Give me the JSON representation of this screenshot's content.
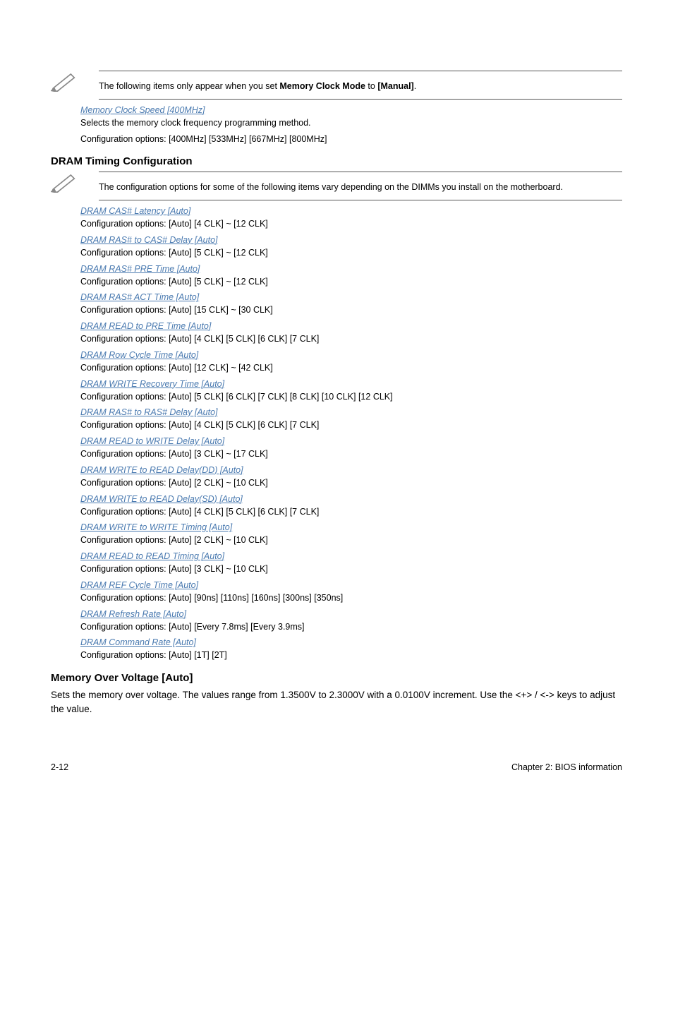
{
  "note1": {
    "text_before": "The following items only appear when you set ",
    "bold_term": "Memory Clock Mode",
    "text_mid": " to ",
    "bold_value": "[Manual]",
    "text_after": "."
  },
  "memory_clock_speed": {
    "title": "Memory Clock Speed [400MHz]",
    "line1": "Selects the memory clock frequency programming method.",
    "line2": "Configuration options: [400MHz] [533MHz] [667MHz] [800MHz]"
  },
  "dram_timing_heading": "DRAM Timing Configuration",
  "note2": {
    "text": "The configuration options for some of the following items vary depending on the DIMMs you install on the motherboard."
  },
  "settings": [
    {
      "title": "DRAM CAS# Latency [Auto]",
      "body": "Configuration options: [Auto] [4 CLK] ~ [12 CLK]"
    },
    {
      "title": "DRAM RAS# to CAS# Delay [Auto]",
      "body": "Configuration options: [Auto] [5 CLK] ~ [12 CLK]"
    },
    {
      "title": "DRAM RAS# PRE Time [Auto]",
      "body": "Configuration options: [Auto] [5 CLK] ~ [12 CLK]"
    },
    {
      "title": "DRAM RAS# ACT Time [Auto]",
      "body": "Configuration options: [Auto] [15 CLK] ~ [30 CLK]"
    },
    {
      "title": "DRAM READ to PRE Time [Auto]",
      "body": "Configuration options: [Auto] [4 CLK] [5 CLK] [6 CLK] [7 CLK]"
    },
    {
      "title": "DRAM Row Cycle Time [Auto]",
      "body": "Configuration options: [Auto] [12 CLK] ~ [42 CLK]"
    },
    {
      "title": "DRAM WRITE Recovery Time [Auto]",
      "body": "Configuration options: [Auto] [5 CLK] [6 CLK] [7 CLK] [8 CLK] [10 CLK] [12 CLK]"
    },
    {
      "title": "DRAM RAS# to RAS# Delay [Auto]",
      "body": "Configuration options: [Auto] [4 CLK] [5 CLK] [6 CLK] [7 CLK]"
    },
    {
      "title": "DRAM READ to WRITE Delay [Auto]",
      "body": "Configuration options: [Auto] [3 CLK] ~ [17 CLK]"
    },
    {
      "title": "DRAM WRITE to READ Delay(DD) [Auto]",
      "body": "Configuration options: [Auto] [2 CLK] ~ [10 CLK]"
    },
    {
      "title": "DRAM WRITE to READ Delay(SD) [Auto]",
      "body": "Configuration options: [Auto] [4 CLK] [5 CLK] [6 CLK] [7 CLK]"
    },
    {
      "title": "DRAM WRITE to WRITE Timing [Auto]",
      "body": "Configuration options: [Auto] [2 CLK] ~ [10 CLK]"
    },
    {
      "title": "DRAM READ to READ Timing [Auto]",
      "body": "Configuration options: [Auto] [3 CLK] ~ [10 CLK]"
    },
    {
      "title": "DRAM REF Cycle Time [Auto]",
      "body": "Configuration options: [Auto] [90ns] [110ns] [160ns] [300ns] [350ns]"
    },
    {
      "title": "DRAM Refresh Rate [Auto]",
      "body": "Configuration options: [Auto] [Every 7.8ms] [Every 3.9ms]"
    },
    {
      "title": "DRAM Command Rate [Auto]",
      "body": "Configuration options: [Auto] [1T] [2T]"
    }
  ],
  "mem_over_voltage": {
    "heading": "Memory Over Voltage [Auto]",
    "body_before": "Sets the memory over voltage. The values range from 1.3500V to 2.3000V with a 0.0100V increment. Use the ",
    "key1": "<+>",
    "slash": " / ",
    "key2": "<->",
    "body_after": " keys to adjust the value."
  },
  "footer": {
    "left": "2-12",
    "right": "Chapter 2: BIOS information"
  }
}
